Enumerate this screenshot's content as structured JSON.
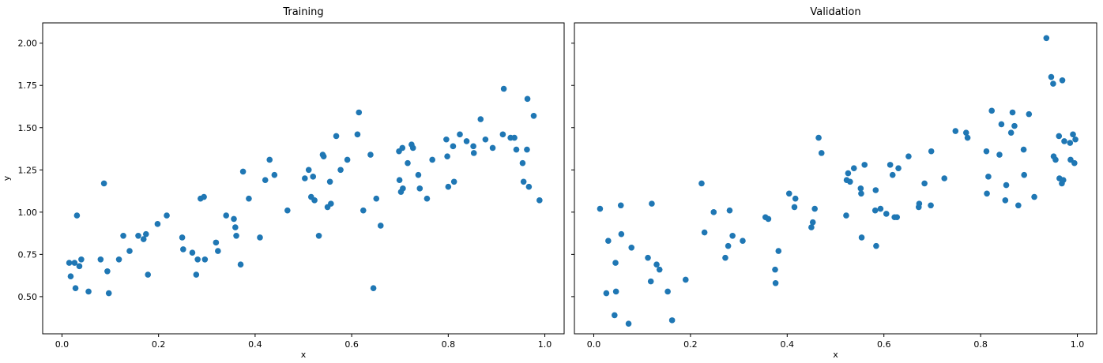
{
  "chart_data": [
    {
      "type": "scatter",
      "title": "Training",
      "xlabel": "x",
      "ylabel": "y",
      "xlim": [
        -0.04,
        1.04
      ],
      "ylim": [
        0.28,
        2.12
      ],
      "xticks": [
        "0.0",
        "0.2",
        "0.4",
        "0.6",
        "0.8",
        "1.0"
      ],
      "xtick_values": [
        0.0,
        0.2,
        0.4,
        0.6,
        0.8,
        1.0
      ],
      "yticks": [
        "0.50",
        "0.75",
        "1.00",
        "1.25",
        "1.50",
        "1.75",
        "2.00"
      ],
      "ytick_values": [
        0.5,
        0.75,
        1.0,
        1.25,
        1.5,
        1.75,
        2.0
      ],
      "grid": false,
      "color": "#1f77b4",
      "points": [
        [
          0.015,
          0.7
        ],
        [
          0.018,
          0.62
        ],
        [
          0.026,
          0.7
        ],
        [
          0.028,
          0.55
        ],
        [
          0.031,
          0.98
        ],
        [
          0.036,
          0.68
        ],
        [
          0.04,
          0.72
        ],
        [
          0.055,
          0.53
        ],
        [
          0.08,
          0.72
        ],
        [
          0.087,
          1.17
        ],
        [
          0.094,
          0.65
        ],
        [
          0.097,
          0.52
        ],
        [
          0.118,
          0.72
        ],
        [
          0.127,
          0.86
        ],
        [
          0.14,
          0.77
        ],
        [
          0.158,
          0.86
        ],
        [
          0.169,
          0.84
        ],
        [
          0.174,
          0.87
        ],
        [
          0.178,
          0.63
        ],
        [
          0.198,
          0.93
        ],
        [
          0.217,
          0.98
        ],
        [
          0.249,
          0.85
        ],
        [
          0.251,
          0.78
        ],
        [
          0.27,
          0.76
        ],
        [
          0.278,
          0.63
        ],
        [
          0.281,
          0.72
        ],
        [
          0.287,
          1.08
        ],
        [
          0.294,
          1.09
        ],
        [
          0.296,
          0.72
        ],
        [
          0.319,
          0.82
        ],
        [
          0.323,
          0.77
        ],
        [
          0.34,
          0.98
        ],
        [
          0.356,
          0.96
        ],
        [
          0.359,
          0.91
        ],
        [
          0.361,
          0.86
        ],
        [
          0.37,
          0.69
        ],
        [
          0.375,
          1.24
        ],
        [
          0.387,
          1.08
        ],
        [
          0.41,
          0.85
        ],
        [
          0.421,
          1.19
        ],
        [
          0.43,
          1.31
        ],
        [
          0.44,
          1.22
        ],
        [
          0.467,
          1.01
        ],
        [
          0.503,
          1.2
        ],
        [
          0.511,
          1.25
        ],
        [
          0.516,
          1.09
        ],
        [
          0.52,
          1.21
        ],
        [
          0.523,
          1.07
        ],
        [
          0.532,
          0.86
        ],
        [
          0.54,
          1.34
        ],
        [
          0.542,
          1.33
        ],
        [
          0.55,
          1.03
        ],
        [
          0.555,
          1.18
        ],
        [
          0.557,
          1.05
        ],
        [
          0.568,
          1.45
        ],
        [
          0.577,
          1.25
        ],
        [
          0.591,
          1.31
        ],
        [
          0.612,
          1.46
        ],
        [
          0.615,
          1.59
        ],
        [
          0.624,
          1.01
        ],
        [
          0.639,
          1.34
        ],
        [
          0.645,
          0.55
        ],
        [
          0.651,
          1.08
        ],
        [
          0.66,
          0.92
        ],
        [
          0.698,
          1.36
        ],
        [
          0.699,
          1.19
        ],
        [
          0.702,
          1.12
        ],
        [
          0.705,
          1.38
        ],
        [
          0.706,
          1.14
        ],
        [
          0.716,
          1.29
        ],
        [
          0.724,
          1.4
        ],
        [
          0.727,
          1.38
        ],
        [
          0.738,
          1.22
        ],
        [
          0.741,
          1.14
        ],
        [
          0.756,
          1.08
        ],
        [
          0.767,
          1.31
        ],
        [
          0.796,
          1.43
        ],
        [
          0.798,
          1.33
        ],
        [
          0.8,
          1.15
        ],
        [
          0.81,
          1.39
        ],
        [
          0.812,
          1.18
        ],
        [
          0.824,
          1.46
        ],
        [
          0.838,
          1.42
        ],
        [
          0.852,
          1.39
        ],
        [
          0.853,
          1.35
        ],
        [
          0.867,
          1.55
        ],
        [
          0.877,
          1.43
        ],
        [
          0.892,
          1.38
        ],
        [
          0.913,
          1.46
        ],
        [
          0.915,
          1.73
        ],
        [
          0.929,
          1.44
        ],
        [
          0.937,
          1.44
        ],
        [
          0.941,
          1.37
        ],
        [
          0.954,
          1.29
        ],
        [
          0.956,
          1.18
        ],
        [
          0.963,
          1.37
        ],
        [
          0.964,
          1.67
        ],
        [
          0.967,
          1.15
        ],
        [
          0.977,
          1.57
        ],
        [
          0.989,
          1.07
        ]
      ]
    },
    {
      "type": "scatter",
      "title": "Validation",
      "xlabel": "x",
      "ylabel": "",
      "xlim": [
        -0.04,
        1.04
      ],
      "ylim": [
        0.28,
        2.12
      ],
      "xticks": [
        "0.0",
        "0.2",
        "0.4",
        "0.6",
        "0.8",
        "1.0"
      ],
      "xtick_values": [
        0.0,
        0.2,
        0.4,
        0.6,
        0.8,
        1.0
      ],
      "yticks": [],
      "ytick_values": [
        0.5,
        0.75,
        1.0,
        1.25,
        1.5,
        1.75,
        2.0
      ],
      "grid": false,
      "color": "#1f77b4",
      "points": [
        [
          0.013,
          1.02
        ],
        [
          0.026,
          0.52
        ],
        [
          0.03,
          0.83
        ],
        [
          0.043,
          0.39
        ],
        [
          0.045,
          0.7
        ],
        [
          0.046,
          0.53
        ],
        [
          0.056,
          1.04
        ],
        [
          0.057,
          0.87
        ],
        [
          0.072,
          0.34
        ],
        [
          0.078,
          0.79
        ],
        [
          0.112,
          0.73
        ],
        [
          0.118,
          0.59
        ],
        [
          0.12,
          1.05
        ],
        [
          0.13,
          0.69
        ],
        [
          0.136,
          0.66
        ],
        [
          0.153,
          0.53
        ],
        [
          0.162,
          0.36
        ],
        [
          0.19,
          0.6
        ],
        [
          0.223,
          1.17
        ],
        [
          0.229,
          0.88
        ],
        [
          0.248,
          1.0
        ],
        [
          0.272,
          0.73
        ],
        [
          0.278,
          0.8
        ],
        [
          0.281,
          1.01
        ],
        [
          0.287,
          0.86
        ],
        [
          0.308,
          0.83
        ],
        [
          0.355,
          0.97
        ],
        [
          0.361,
          0.96
        ],
        [
          0.375,
          0.66
        ],
        [
          0.376,
          0.58
        ],
        [
          0.382,
          0.77
        ],
        [
          0.404,
          1.11
        ],
        [
          0.415,
          1.03
        ],
        [
          0.417,
          1.08
        ],
        [
          0.45,
          0.91
        ],
        [
          0.453,
          0.94
        ],
        [
          0.457,
          1.02
        ],
        [
          0.465,
          1.44
        ],
        [
          0.471,
          1.35
        ],
        [
          0.522,
          0.98
        ],
        [
          0.523,
          1.19
        ],
        [
          0.526,
          1.23
        ],
        [
          0.53,
          1.18
        ],
        [
          0.538,
          1.26
        ],
        [
          0.552,
          1.14
        ],
        [
          0.553,
          1.11
        ],
        [
          0.554,
          0.85
        ],
        [
          0.56,
          1.28
        ],
        [
          0.582,
          1.01
        ],
        [
          0.583,
          1.13
        ],
        [
          0.584,
          0.8
        ],
        [
          0.593,
          1.02
        ],
        [
          0.605,
          0.99
        ],
        [
          0.613,
          1.28
        ],
        [
          0.618,
          1.22
        ],
        [
          0.622,
          0.97
        ],
        [
          0.627,
          0.97
        ],
        [
          0.63,
          1.26
        ],
        [
          0.651,
          1.33
        ],
        [
          0.672,
          1.03
        ],
        [
          0.673,
          1.05
        ],
        [
          0.684,
          1.17
        ],
        [
          0.697,
          1.04
        ],
        [
          0.698,
          1.36
        ],
        [
          0.725,
          1.2
        ],
        [
          0.748,
          1.48
        ],
        [
          0.77,
          1.47
        ],
        [
          0.773,
          1.44
        ],
        [
          0.812,
          1.36
        ],
        [
          0.813,
          1.11
        ],
        [
          0.816,
          1.21
        ],
        [
          0.823,
          1.6
        ],
        [
          0.839,
          1.34
        ],
        [
          0.843,
          1.52
        ],
        [
          0.851,
          1.07
        ],
        [
          0.853,
          1.16
        ],
        [
          0.863,
          1.47
        ],
        [
          0.866,
          1.59
        ],
        [
          0.87,
          1.51
        ],
        [
          0.878,
          1.04
        ],
        [
          0.889,
          1.37
        ],
        [
          0.89,
          1.22
        ],
        [
          0.9,
          1.58
        ],
        [
          0.911,
          1.09
        ],
        [
          0.936,
          2.03
        ],
        [
          0.946,
          1.8
        ],
        [
          0.95,
          1.76
        ],
        [
          0.951,
          1.33
        ],
        [
          0.955,
          1.31
        ],
        [
          0.962,
          1.45
        ],
        [
          0.963,
          1.2
        ],
        [
          0.968,
          1.17
        ],
        [
          0.969,
          1.78
        ],
        [
          0.971,
          1.19
        ],
        [
          0.973,
          1.42
        ],
        [
          0.985,
          1.41
        ],
        [
          0.986,
          1.31
        ],
        [
          0.991,
          1.46
        ],
        [
          0.994,
          1.29
        ],
        [
          0.996,
          1.43
        ]
      ]
    }
  ]
}
